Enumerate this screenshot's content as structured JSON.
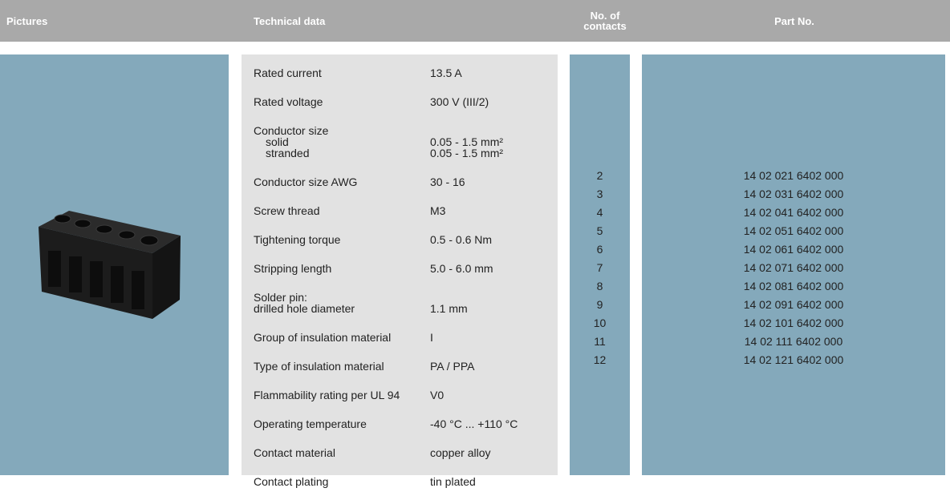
{
  "header": {
    "columns": [
      "Pictures",
      "Technical data",
      "No. of contacts",
      "Part No."
    ]
  },
  "technical_data": {
    "rows": [
      {
        "label": "Rated current",
        "value": "13.5 A"
      },
      {
        "label": "Rated voltage",
        "value": "300 V (III/2)"
      },
      {
        "label": "Conductor size",
        "sub": [
          {
            "label": "solid",
            "value": "0.05 - 1.5 mm²"
          },
          {
            "label": "stranded",
            "value": "0.05 - 1.5 mm²"
          }
        ]
      },
      {
        "label": "Conductor size AWG",
        "value": "30 - 16"
      },
      {
        "label": "Screw thread",
        "value": "M3"
      },
      {
        "label": "Tightening torque",
        "value": "0.5 - 0.6 Nm"
      },
      {
        "label": "Stripping length",
        "value": "5.0 - 6.0 mm"
      },
      {
        "label": [
          "Solder pin:",
          "drilled hole diameter"
        ],
        "value": "1.1 mm"
      },
      {
        "label": "Group of insulation material",
        "value": "I"
      },
      {
        "label": "Type of insulation material",
        "value": "PA / PPA"
      },
      {
        "label": "Flammability rating per UL 94",
        "value": "V0"
      },
      {
        "label": "Operating temperature",
        "value": "-40 °C ... +110 °C"
      },
      {
        "label": "Contact material",
        "value": "copper alloy"
      },
      {
        "label": "Contact plating",
        "value": "tin plated"
      }
    ]
  },
  "contacts": [
    "2",
    "3",
    "4",
    "5",
    "6",
    "7",
    "8",
    "9",
    "10",
    "11",
    "12"
  ],
  "part_numbers": [
    "14 02 021 6402 000",
    "14 02 031 6402 000",
    "14 02 041 6402 000",
    "14 02 051 6402 000",
    "14 02 061 6402 000",
    "14 02 071 6402 000",
    "14 02 081 6402 000",
    "14 02 091 6402 000",
    "14 02 101 6402 000",
    "14 02 111 6402 000",
    "14 02 121 6402 000"
  ]
}
